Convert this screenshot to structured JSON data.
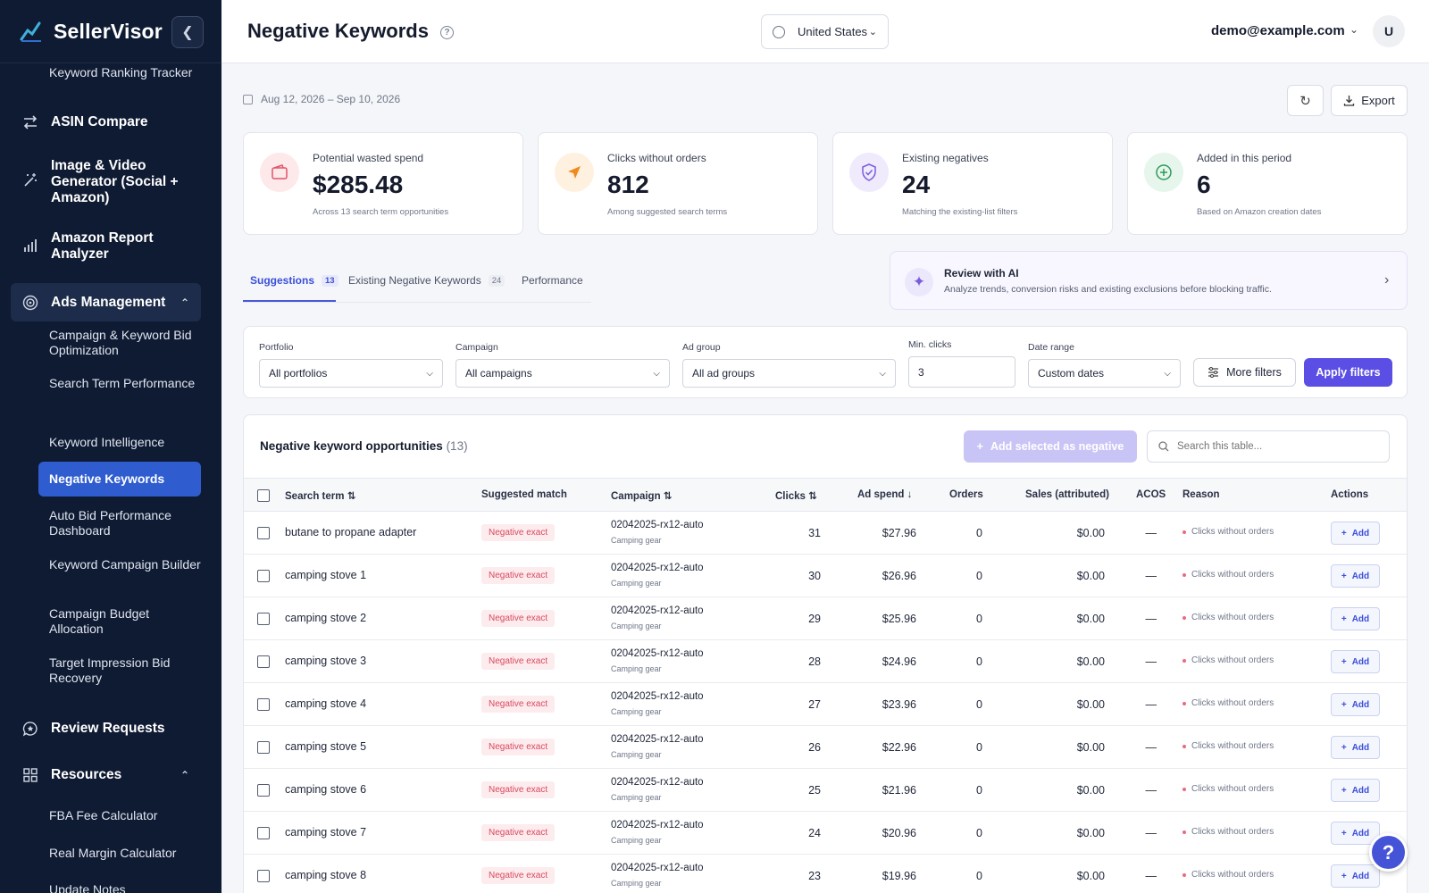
{
  "brand": {
    "name": "SellerVisor"
  },
  "sidebar": {
    "items": [
      {
        "label": "Keyword Ranking Tracker",
        "type": "sub"
      },
      {
        "label": "ASIN Compare",
        "type": "main",
        "icon": "arrows-swap-icon"
      },
      {
        "label": "Image & Video Generator (Social + Amazon)",
        "type": "main",
        "icon": "magic-wand-icon"
      },
      {
        "label": "Amazon Report Analyzer",
        "type": "main",
        "icon": "bar-chart-icon"
      },
      {
        "label": "Ads Management",
        "type": "main",
        "icon": "target-icon"
      },
      {
        "label": "Campaign & Keyword Bid Optimization",
        "type": "sub"
      },
      {
        "label": "Search Term Performance",
        "type": "sub"
      },
      {
        "label": "Keyword Intelligence",
        "type": "sub"
      },
      {
        "label": "Negative Keywords",
        "type": "sub",
        "active": true
      },
      {
        "label": "Auto Bid Performance Dashboard",
        "type": "sub"
      },
      {
        "label": "Keyword Campaign Builder",
        "type": "sub"
      },
      {
        "label": "Campaign Budget Allocation",
        "type": "sub"
      },
      {
        "label": "Target Impression Bid Recovery",
        "type": "sub"
      },
      {
        "label": "Review Requests",
        "type": "main",
        "icon": "chat-star-icon"
      },
      {
        "label": "Resources",
        "type": "main",
        "icon": "grid-icon"
      },
      {
        "label": "FBA Fee Calculator",
        "type": "sub"
      },
      {
        "label": "Real Margin Calculator",
        "type": "sub"
      },
      {
        "label": "Update Notes",
        "type": "sub"
      }
    ]
  },
  "header": {
    "title": "Negative Keywords",
    "country": "United States",
    "user_email": "demo@example.com",
    "avatar_initial": "U"
  },
  "toolbar": {
    "date_range": "Aug 12, 2026 – Sep 10, 2026",
    "export_label": "Export"
  },
  "stats": [
    {
      "label": "Potential wasted spend",
      "value": "$285.48",
      "sub": "Across 13 search term opportunities",
      "color": "#fde8ea",
      "icon": "wallet-icon"
    },
    {
      "label": "Clicks without orders",
      "value": "812",
      "sub": "Among suggested search terms",
      "color": "#fff1e0",
      "icon": "cursor-arrow-icon"
    },
    {
      "label": "Existing negatives",
      "value": "24",
      "sub": "Matching the existing-list filters",
      "color": "#efeafc",
      "icon": "shield-check-icon"
    },
    {
      "label": "Added in this period",
      "value": "6",
      "sub": "Based on Amazon creation dates",
      "color": "#e6f6ec",
      "icon": "plus-circle-icon"
    }
  ],
  "tabs": [
    {
      "label": "Suggestions",
      "count": "13",
      "active": true
    },
    {
      "label": "Existing Negative Keywords",
      "count": "24"
    },
    {
      "label": "Performance",
      "count": ""
    }
  ],
  "ai": {
    "title": "Review with AI",
    "desc": "Analyze trends, conversion risks and existing exclusions before blocking traffic."
  },
  "filters": {
    "portfolio_label": "Portfolio",
    "portfolio_value": "All portfolios",
    "campaign_label": "Campaign",
    "campaign_value": "All campaigns",
    "adgroup_label": "Ad group",
    "adgroup_value": "All ad groups",
    "minclicks_label": "Min. clicks",
    "minclicks_value": "3",
    "daterange_label": "Date range",
    "daterange_value": "Custom dates",
    "more_label": "More filters",
    "apply_label": "Apply filters"
  },
  "table": {
    "title": "Negative keyword opportunities",
    "count": "(13)",
    "add_selected_label": "Add selected as negative",
    "search_placeholder": "Search this table...",
    "columns": {
      "term": "Search term",
      "match": "Suggested match",
      "campaign": "Campaign",
      "clicks": "Clicks",
      "spend": "Ad spend",
      "orders": "Orders",
      "sales": "Sales (attributed)",
      "acos": "ACOS",
      "reason": "Reason",
      "actions": "Actions"
    },
    "rows": [
      {
        "term": "butane to propane adapter",
        "match": "Negative exact",
        "campaign": "02042025-rx12-auto",
        "campaign_sub": "Camping gear",
        "clicks": "31",
        "spend": "$27.96",
        "orders": "0",
        "sales": "$0.00",
        "acos": "—",
        "reason": "Clicks without orders",
        "action": "Add"
      },
      {
        "term": "camping stove 1",
        "match": "Negative exact",
        "campaign": "02042025-rx12-auto",
        "campaign_sub": "Camping gear",
        "clicks": "30",
        "spend": "$26.96",
        "orders": "0",
        "sales": "$0.00",
        "acos": "—",
        "reason": "Clicks without orders",
        "action": "Add"
      },
      {
        "term": "camping stove 2",
        "match": "Negative exact",
        "campaign": "02042025-rx12-auto",
        "campaign_sub": "Camping gear",
        "clicks": "29",
        "spend": "$25.96",
        "orders": "0",
        "sales": "$0.00",
        "acos": "—",
        "reason": "Clicks without orders",
        "action": "Add"
      },
      {
        "term": "camping stove 3",
        "match": "Negative exact",
        "campaign": "02042025-rx12-auto",
        "campaign_sub": "Camping gear",
        "clicks": "28",
        "spend": "$24.96",
        "orders": "0",
        "sales": "$0.00",
        "acos": "—",
        "reason": "Clicks without orders",
        "action": "Add"
      },
      {
        "term": "camping stove 4",
        "match": "Negative exact",
        "campaign": "02042025-rx12-auto",
        "campaign_sub": "Camping gear",
        "clicks": "27",
        "spend": "$23.96",
        "orders": "0",
        "sales": "$0.00",
        "acos": "—",
        "reason": "Clicks without orders",
        "action": "Add"
      },
      {
        "term": "camping stove 5",
        "match": "Negative exact",
        "campaign": "02042025-rx12-auto",
        "campaign_sub": "Camping gear",
        "clicks": "26",
        "spend": "$22.96",
        "orders": "0",
        "sales": "$0.00",
        "acos": "—",
        "reason": "Clicks without orders",
        "action": "Add"
      },
      {
        "term": "camping stove 6",
        "match": "Negative exact",
        "campaign": "02042025-rx12-auto",
        "campaign_sub": "Camping gear",
        "clicks": "25",
        "spend": "$21.96",
        "orders": "0",
        "sales": "$0.00",
        "acos": "—",
        "reason": "Clicks without orders",
        "action": "Add"
      },
      {
        "term": "camping stove 7",
        "match": "Negative exact",
        "campaign": "02042025-rx12-auto",
        "campaign_sub": "Camping gear",
        "clicks": "24",
        "spend": "$20.96",
        "orders": "0",
        "sales": "$0.00",
        "acos": "—",
        "reason": "Clicks without orders",
        "action": "Add"
      },
      {
        "term": "camping stove 8",
        "match": "Negative exact",
        "campaign": "02042025-rx12-auto",
        "campaign_sub": "Camping gear",
        "clicks": "23",
        "spend": "$19.96",
        "orders": "0",
        "sales": "$0.00",
        "acos": "—",
        "reason": "Clicks without orders",
        "action": "Add"
      }
    ]
  },
  "help_fab": "?"
}
